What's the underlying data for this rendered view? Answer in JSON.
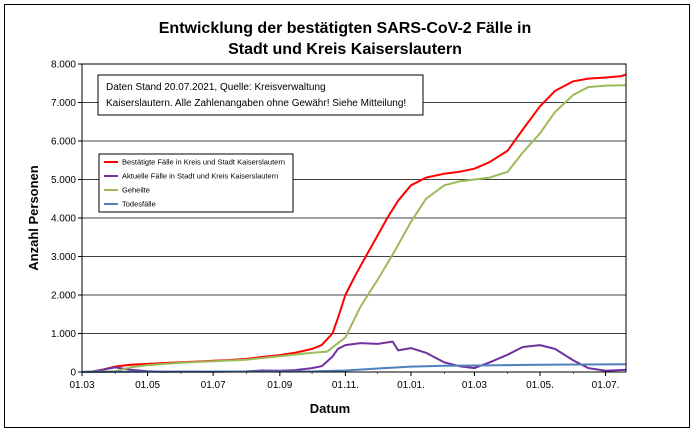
{
  "chart_data": {
    "type": "line",
    "title_line1": "Entwicklung der bestätigten SARS-CoV-2 Fälle in",
    "title_line2": "Stadt und Kreis Kaiserslautern",
    "xlabel": "Datum",
    "ylabel": "Anzahl Personen",
    "note_line1": "Daten Stand 20.07.2021, Quelle: Kreisverwaltung",
    "note_line2": "Kaiserslautern. Alle Zahlenangaben ohne Gewähr! Siehe Mitteilung!",
    "ylim": [
      0,
      8000
    ],
    "yticks": [
      {
        "value": 0,
        "label": "0"
      },
      {
        "value": 1000,
        "label": "1.000"
      },
      {
        "value": 2000,
        "label": "2.000"
      },
      {
        "value": 3000,
        "label": "3.000"
      },
      {
        "value": 4000,
        "label": "4.000"
      },
      {
        "value": 5000,
        "label": "5.000"
      },
      {
        "value": 6000,
        "label": "6.000"
      },
      {
        "value": 7000,
        "label": "7.000"
      },
      {
        "value": 8000,
        "label": "8.000"
      }
    ],
    "xlim": [
      "2020-03-01",
      "2021-07-20"
    ],
    "xticks": [
      {
        "date": "2020-03-01",
        "label": "01.03"
      },
      {
        "date": "2020-05-01",
        "label": "01.05"
      },
      {
        "date": "2020-07-01",
        "label": "01.07"
      },
      {
        "date": "2020-09-01",
        "label": "01.09"
      },
      {
        "date": "2020-11-01",
        "label": "01.11."
      },
      {
        "date": "2021-01-01",
        "label": "01.01."
      },
      {
        "date": "2021-03-01",
        "label": "01.03"
      },
      {
        "date": "2021-05-01",
        "label": "01.05."
      },
      {
        "date": "2021-07-01",
        "label": "01.07."
      }
    ],
    "grid": "horizontal",
    "legend_position": "left",
    "series": [
      {
        "name": "Bestätigte Fälle in Kreis und Stadt Kaiserslautern",
        "color": "#ff0000",
        "points": [
          [
            "2020-03-01",
            0
          ],
          [
            "2020-03-10",
            10
          ],
          [
            "2020-03-20",
            60
          ],
          [
            "2020-04-01",
            140
          ],
          [
            "2020-04-15",
            190
          ],
          [
            "2020-05-01",
            210
          ],
          [
            "2020-05-15",
            230
          ],
          [
            "2020-06-01",
            255
          ],
          [
            "2020-06-15",
            270
          ],
          [
            "2020-07-01",
            290
          ],
          [
            "2020-07-15",
            310
          ],
          [
            "2020-08-01",
            340
          ],
          [
            "2020-08-15",
            390
          ],
          [
            "2020-09-01",
            440
          ],
          [
            "2020-09-15",
            500
          ],
          [
            "2020-10-01",
            600
          ],
          [
            "2020-10-10",
            700
          ],
          [
            "2020-10-20",
            1000
          ],
          [
            "2020-10-25",
            1400
          ],
          [
            "2020-11-01",
            2000
          ],
          [
            "2020-11-10",
            2500
          ],
          [
            "2020-11-20",
            3000
          ],
          [
            "2020-12-01",
            3550
          ],
          [
            "2020-12-10",
            4000
          ],
          [
            "2020-12-20",
            4450
          ],
          [
            "2021-01-01",
            4850
          ],
          [
            "2021-01-15",
            5050
          ],
          [
            "2021-02-01",
            5150
          ],
          [
            "2021-02-15",
            5200
          ],
          [
            "2021-03-01",
            5280
          ],
          [
            "2021-03-15",
            5450
          ],
          [
            "2021-04-01",
            5750
          ],
          [
            "2021-04-15",
            6300
          ],
          [
            "2021-05-01",
            6900
          ],
          [
            "2021-05-15",
            7300
          ],
          [
            "2021-06-01",
            7550
          ],
          [
            "2021-06-15",
            7620
          ],
          [
            "2021-07-01",
            7650
          ],
          [
            "2021-07-15",
            7680
          ],
          [
            "2021-07-20",
            7730
          ]
        ]
      },
      {
        "name": "Aktuelle Fälle in Stadt und Kreis Kaiserslautern",
        "color": "#7030a0",
        "points": [
          [
            "2020-03-01",
            0
          ],
          [
            "2020-03-10",
            10
          ],
          [
            "2020-03-20",
            60
          ],
          [
            "2020-04-01",
            120
          ],
          [
            "2020-04-15",
            60
          ],
          [
            "2020-05-01",
            20
          ],
          [
            "2020-05-15",
            5
          ],
          [
            "2020-06-01",
            10
          ],
          [
            "2020-07-01",
            5
          ],
          [
            "2020-08-01",
            15
          ],
          [
            "2020-08-15",
            40
          ],
          [
            "2020-09-01",
            30
          ],
          [
            "2020-09-15",
            50
          ],
          [
            "2020-10-01",
            100
          ],
          [
            "2020-10-10",
            150
          ],
          [
            "2020-10-20",
            400
          ],
          [
            "2020-10-25",
            600
          ],
          [
            "2020-11-01",
            700
          ],
          [
            "2020-11-15",
            750
          ],
          [
            "2020-12-01",
            730
          ],
          [
            "2020-12-15",
            790
          ],
          [
            "2020-12-20",
            560
          ],
          [
            "2021-01-01",
            620
          ],
          [
            "2021-01-15",
            500
          ],
          [
            "2021-02-01",
            250
          ],
          [
            "2021-02-15",
            150
          ],
          [
            "2021-03-01",
            100
          ],
          [
            "2021-03-15",
            250
          ],
          [
            "2021-04-01",
            450
          ],
          [
            "2021-04-15",
            650
          ],
          [
            "2021-05-01",
            700
          ],
          [
            "2021-05-15",
            600
          ],
          [
            "2021-06-01",
            300
          ],
          [
            "2021-06-15",
            100
          ],
          [
            "2021-07-01",
            30
          ],
          [
            "2021-07-20",
            60
          ]
        ]
      },
      {
        "name": "Geheilte",
        "color": "#9bbb59",
        "points": [
          [
            "2020-03-01",
            0
          ],
          [
            "2020-04-01",
            20
          ],
          [
            "2020-04-15",
            120
          ],
          [
            "2020-05-01",
            180
          ],
          [
            "2020-06-01",
            240
          ],
          [
            "2020-07-01",
            280
          ],
          [
            "2020-08-01",
            320
          ],
          [
            "2020-09-01",
            410
          ],
          [
            "2020-10-01",
            500
          ],
          [
            "2020-10-15",
            530
          ],
          [
            "2020-11-01",
            900
          ],
          [
            "2020-11-15",
            1700
          ],
          [
            "2020-12-01",
            2400
          ],
          [
            "2020-12-15",
            3050
          ],
          [
            "2021-01-01",
            3900
          ],
          [
            "2021-01-15",
            4500
          ],
          [
            "2021-02-01",
            4850
          ],
          [
            "2021-02-15",
            4950
          ],
          [
            "2021-03-01",
            5000
          ],
          [
            "2021-03-15",
            5050
          ],
          [
            "2021-04-01",
            5200
          ],
          [
            "2021-04-15",
            5700
          ],
          [
            "2021-05-01",
            6200
          ],
          [
            "2021-05-15",
            6750
          ],
          [
            "2021-06-01",
            7200
          ],
          [
            "2021-06-15",
            7400
          ],
          [
            "2021-07-01",
            7440
          ],
          [
            "2021-07-20",
            7450
          ]
        ]
      },
      {
        "name": "Todesfälle",
        "color": "#4f81bd",
        "points": [
          [
            "2020-03-01",
            0
          ],
          [
            "2020-04-15",
            5
          ],
          [
            "2020-06-01",
            10
          ],
          [
            "2020-10-01",
            15
          ],
          [
            "2020-11-01",
            40
          ],
          [
            "2020-12-01",
            90
          ],
          [
            "2021-01-01",
            140
          ],
          [
            "2021-02-01",
            160
          ],
          [
            "2021-03-01",
            170
          ],
          [
            "2021-05-01",
            190
          ],
          [
            "2021-07-20",
            200
          ]
        ]
      }
    ]
  }
}
